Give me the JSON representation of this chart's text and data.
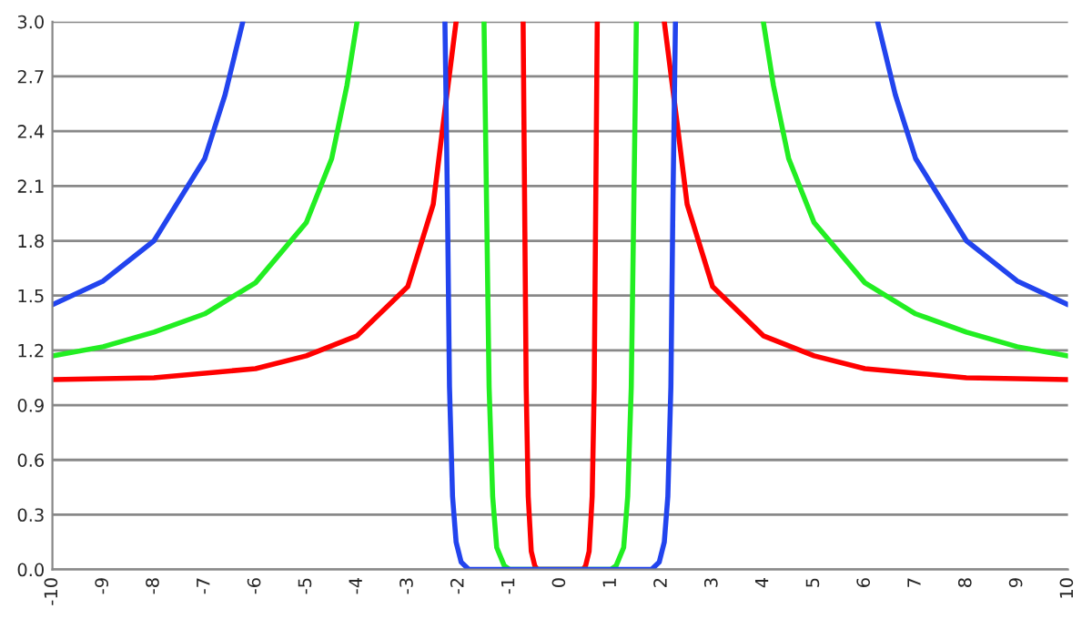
{
  "chart_data": {
    "type": "line",
    "grid": "y",
    "marker": "none",
    "line_style": "solid",
    "xlim": [
      -10,
      10
    ],
    "xticks": [
      -10,
      -9,
      -8,
      -7,
      -6,
      -5,
      -4,
      -3,
      -2,
      -1,
      0,
      1,
      2,
      3,
      4,
      5,
      6,
      7,
      8,
      9,
      10
    ],
    "ylim": [
      0,
      3.0
    ],
    "yticks": [
      {
        "value": 0,
        "label": "0.0"
      },
      {
        "value": 0.3,
        "label": "0.3"
      },
      {
        "value": 0.6,
        "label": "0.6"
      },
      {
        "value": 0.9,
        "label": "0.9"
      },
      {
        "value": 1.2,
        "label": "1.2"
      },
      {
        "value": 1.5,
        "label": "1.5"
      },
      {
        "value": 1.8,
        "label": "1.8"
      },
      {
        "value": 2.1,
        "label": "2.1"
      },
      {
        "value": 2.4,
        "label": "2.4"
      },
      {
        "value": 2.7,
        "label": "2.7"
      },
      {
        "value": 3.0,
        "label": "3.0"
      }
    ],
    "series": [
      {
        "color": "#ff0000",
        "x": [
          -10,
          -8,
          -6,
          -5,
          -4,
          -3,
          -2.5,
          -2.3,
          -2.05,
          -1.5,
          -0.73,
          -0.7,
          -0.67,
          -0.63,
          -0.57,
          -0.5,
          -0.45,
          0,
          0.45,
          0.5,
          0.57,
          0.63,
          0.67,
          0.7,
          0.73,
          1.5,
          2.05,
          2.3,
          2.5,
          3,
          4,
          5,
          6,
          8,
          10
        ],
        "values": [
          1.04,
          1.05,
          1.1,
          1.17,
          1.28,
          1.55,
          2.0,
          2.45,
          3.0,
          null,
          3.0,
          2.0,
          1.0,
          0.4,
          0.1,
          0.02,
          0,
          0,
          0,
          0.02,
          0.1,
          0.4,
          1.0,
          2.0,
          3.0,
          null,
          3.0,
          2.45,
          2.0,
          1.55,
          1.28,
          1.17,
          1.1,
          1.05,
          1.04
        ]
      },
      {
        "color": "#22ee22",
        "x": [
          -10,
          -9,
          -8,
          -7,
          -6,
          -5,
          -4.5,
          -4.2,
          -4.0,
          -3,
          -1.5,
          -1.45,
          -1.4,
          -1.33,
          -1.25,
          -1.1,
          -1.0,
          0,
          1.0,
          1.1,
          1.25,
          1.33,
          1.4,
          1.45,
          1.5,
          3,
          4.0,
          4.2,
          4.5,
          5,
          6,
          7,
          8,
          9,
          10
        ],
        "values": [
          1.17,
          1.22,
          1.3,
          1.4,
          1.57,
          1.9,
          2.25,
          2.65,
          3.0,
          null,
          3.0,
          2.0,
          1.0,
          0.4,
          0.12,
          0.02,
          0,
          0,
          0,
          0.02,
          0.12,
          0.4,
          1.0,
          2.0,
          3.0,
          null,
          3.0,
          2.65,
          2.25,
          1.9,
          1.57,
          1.4,
          1.3,
          1.22,
          1.17
        ]
      },
      {
        "color": "#2244ee",
        "x": [
          -10,
          -9,
          -8,
          -7,
          -6.6,
          -6.25,
          -4,
          -2.27,
          -2.22,
          -2.18,
          -2.12,
          -2.05,
          -1.95,
          -1.8,
          0,
          1.8,
          1.95,
          2.05,
          2.12,
          2.18,
          2.22,
          2.27,
          4,
          6.25,
          6.6,
          7,
          8,
          9,
          10
        ],
        "values": [
          1.45,
          1.58,
          1.8,
          2.25,
          2.6,
          3.0,
          null,
          3.0,
          2.0,
          1.0,
          0.4,
          0.15,
          0.04,
          0,
          0,
          0,
          0.04,
          0.15,
          0.4,
          1.0,
          2.0,
          3.0,
          null,
          3.0,
          2.6,
          2.25,
          1.8,
          1.58,
          1.45
        ]
      }
    ]
  }
}
